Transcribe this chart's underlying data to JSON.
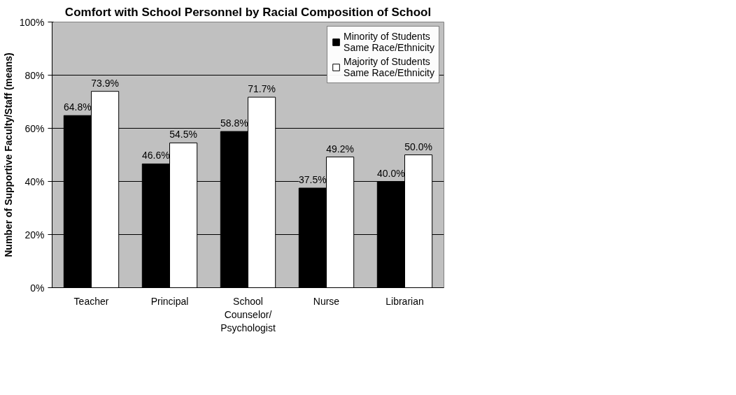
{
  "chart_data": {
    "type": "bar",
    "title": "Comfort with School Personnel by Racial Composition of School",
    "ylabel": "Number of Supportive Faculty/Staff (means)",
    "categories": [
      "Teacher",
      "Principal",
      "School Counselor/ Psychologist",
      "Nurse",
      "Librarian"
    ],
    "series": [
      {
        "name": "Minority of Students Same Race/Ethnicity",
        "color": "#000000",
        "values": [
          64.8,
          46.6,
          58.8,
          37.5,
          40.0
        ],
        "value_labels": [
          "64.8%",
          "46.6%",
          "58.8%",
          "37.5%",
          "40.0%"
        ]
      },
      {
        "name": "Majority of Students Same Race/Ethnicity",
        "color": "#ffffff",
        "values": [
          73.9,
          54.5,
          71.7,
          49.2,
          50.0
        ],
        "value_labels": [
          "73.9%",
          "54.5%",
          "71.7%",
          "49.2%",
          "50.0%"
        ]
      }
    ],
    "ylim": [
      0,
      100
    ],
    "yticks": [
      {
        "value": 0,
        "label": "0%"
      },
      {
        "value": 20,
        "label": "20%"
      },
      {
        "value": 40,
        "label": "40%"
      },
      {
        "value": 60,
        "label": "60%"
      },
      {
        "value": 80,
        "label": "80%"
      },
      {
        "value": 100,
        "label": "100%"
      }
    ],
    "grid": "y",
    "legend": "top right"
  }
}
